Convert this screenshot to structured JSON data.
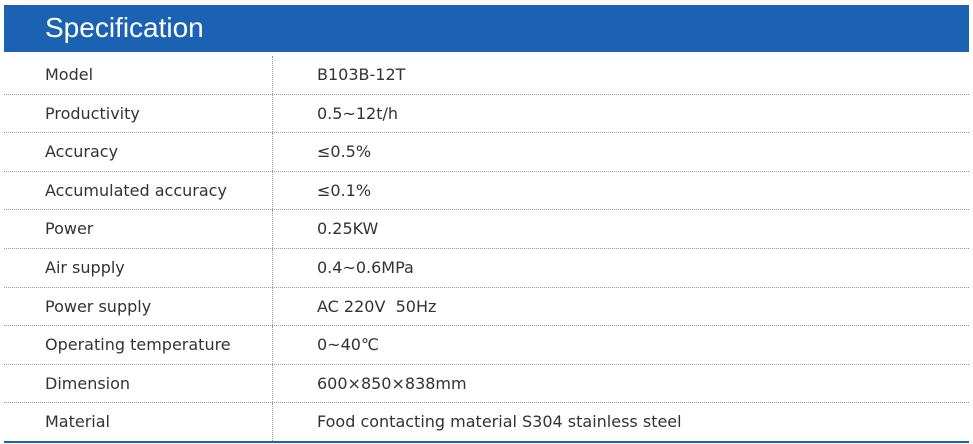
{
  "header": {
    "title": "Specification"
  },
  "table": {
    "rows": [
      [
        "Model",
        "B103B-12T"
      ],
      [
        "Productivity",
        "0.5~12t/h"
      ],
      [
        "Accuracy",
        "≤0.5%"
      ],
      [
        "Accumulated accuracy",
        "≤0.1%"
      ],
      [
        "Power",
        "0.25KW"
      ],
      [
        "Air supply",
        "0.4~0.6MPa"
      ],
      [
        "Power supply",
        "AC 220V  50Hz"
      ],
      [
        "Operating temperature",
        "0~40℃"
      ],
      [
        "Dimension",
        "600×850×838mm"
      ],
      [
        "Material",
        "Food contacting material S304 stainless steel"
      ]
    ]
  }
}
